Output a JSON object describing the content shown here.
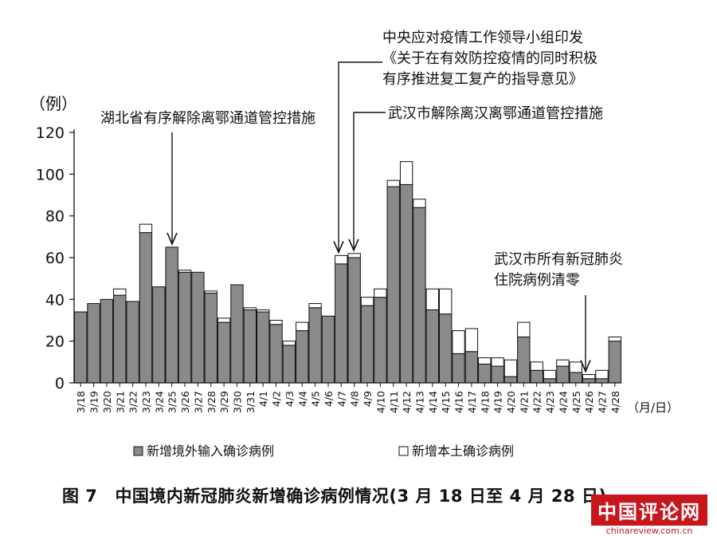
{
  "chart_data": {
    "type": "bar",
    "stacked": true,
    "title": "中国境内新冠肺炎新增确诊病例情况(3 月 18 日至 4 月 28 日)",
    "figure_label": "图 7",
    "ylabel": "（例）",
    "xlabel": "（月/日）",
    "ylim": [
      0,
      120
    ],
    "yticks": [
      0,
      20,
      40,
      60,
      80,
      100,
      120
    ],
    "grid": false,
    "legend_position": "bottom",
    "categories": [
      "3/18",
      "3/19",
      "3/20",
      "3/21",
      "3/22",
      "3/23",
      "3/24",
      "3/25",
      "3/26",
      "3/27",
      "3/28",
      "3/29",
      "3/30",
      "3/31",
      "4/1",
      "4/2",
      "4/3",
      "4/4",
      "4/5",
      "4/6",
      "4/7",
      "4/8",
      "4/9",
      "4/10",
      "4/11",
      "4/12",
      "4/13",
      "4/14",
      "4/15",
      "4/16",
      "4/17",
      "4/18",
      "4/19",
      "4/20",
      "4/21",
      "4/22",
      "4/23",
      "4/24",
      "4/25",
      "4/26",
      "4/27",
      "4/28"
    ],
    "series": [
      {
        "name": "新增境外输入确诊病例",
        "color": "#8a8a8a",
        "values": [
          34,
          38,
          40,
          42,
          39,
          72,
          46,
          65,
          53,
          53,
          43,
          29,
          47,
          35,
          34,
          28,
          18,
          25,
          36,
          32,
          57,
          60,
          37,
          41,
          94,
          95,
          84,
          35,
          33,
          14,
          15,
          9,
          8,
          3,
          22,
          6,
          2,
          8,
          5,
          2,
          2,
          20
        ]
      },
      {
        "name": "新增本土确诊病例",
        "color": "#ffffff",
        "values": [
          0,
          0,
          0,
          3,
          0,
          4,
          0,
          0,
          1,
          0,
          1,
          2,
          0,
          1,
          1,
          2,
          2,
          4,
          2,
          0,
          4,
          2,
          4,
          4,
          3,
          11,
          4,
          10,
          12,
          11,
          11,
          3,
          4,
          8,
          7,
          4,
          4,
          3,
          5,
          2,
          4,
          2
        ]
      }
    ],
    "annotations": [
      {
        "text": [
          "湖北省有序解除离鄂通道管控措施"
        ],
        "category": "3/25"
      },
      {
        "text": [
          "中央应对疫情工作领导小组印发",
          "《关于在有效防控疫情的同时积极",
          "有序推进复工复产的指导意见》"
        ],
        "category": "4/7"
      },
      {
        "text": [
          "武汉市解除离汉离鄂通道管控措施"
        ],
        "category": "4/8"
      },
      {
        "text": [
          "武汉市所有新冠肺炎",
          "住院病例清零"
        ],
        "category": "4/26"
      }
    ]
  },
  "watermark": {
    "main": "中国评论网",
    "url": "chinareview.com.cn"
  }
}
